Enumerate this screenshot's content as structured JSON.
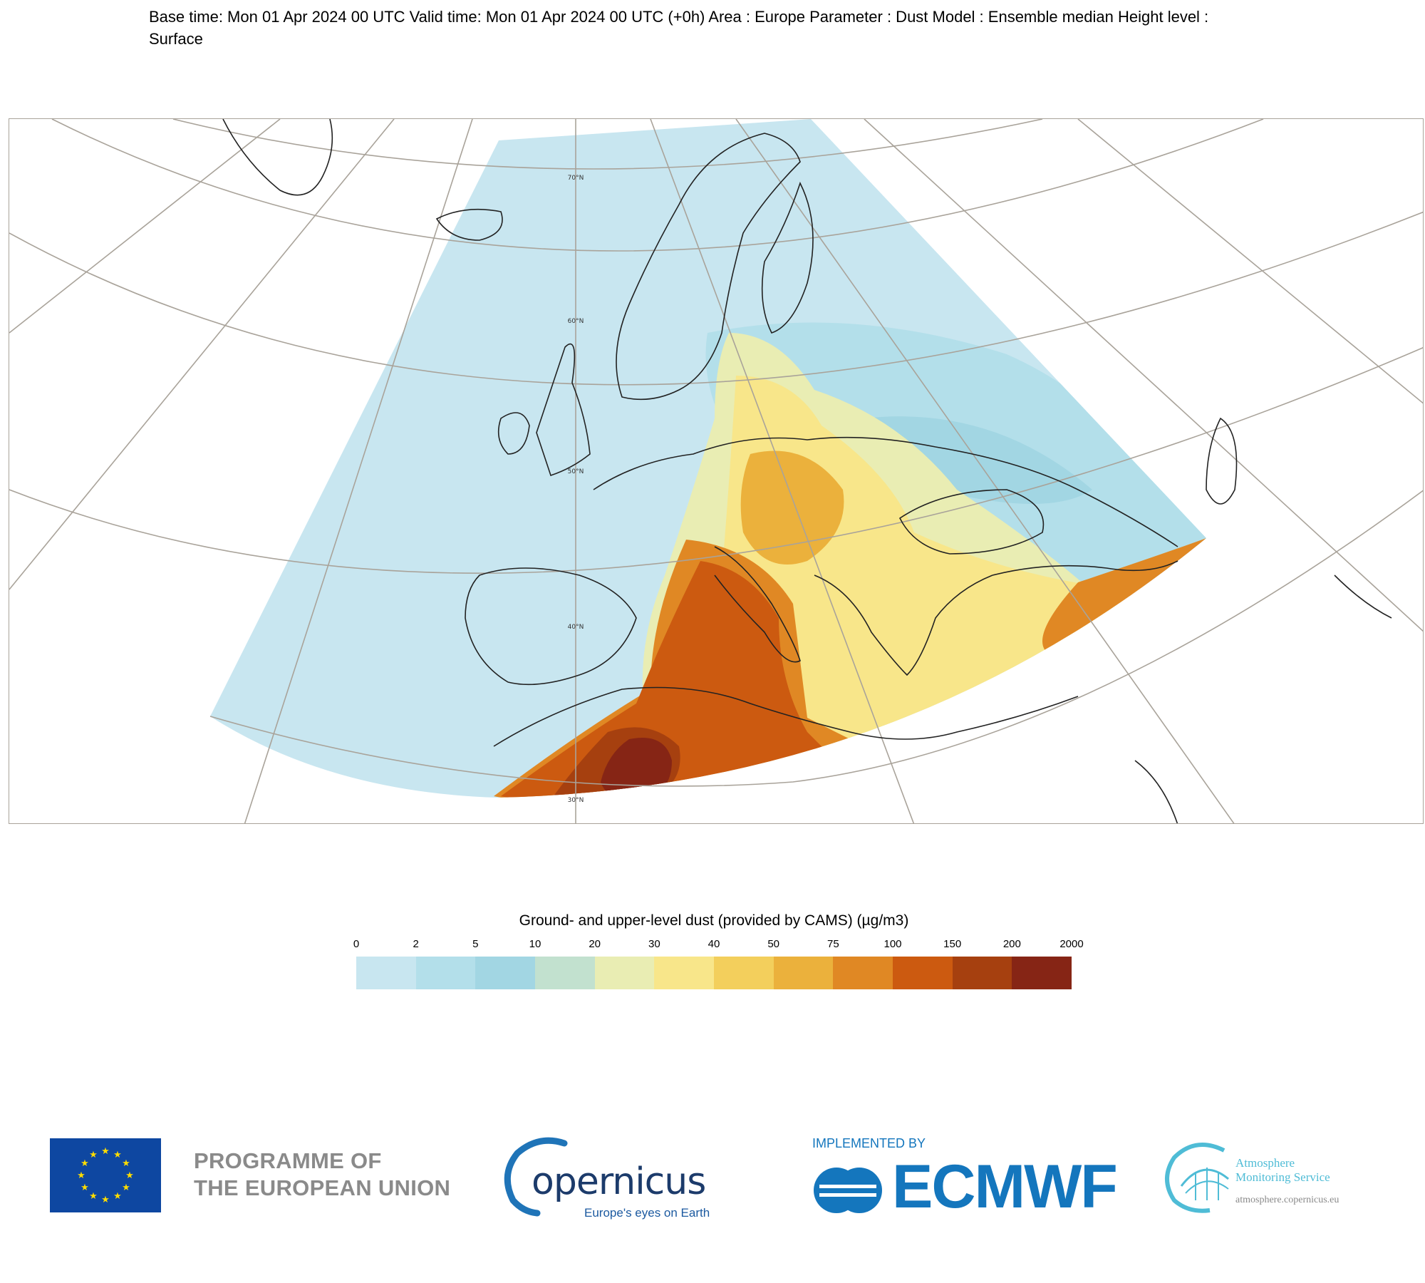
{
  "header": {
    "text": "Base time: Mon 01 Apr 2024 00 UTC Valid time: Mon 01 Apr 2024 00 UTC (+0h) Area : Europe Parameter : Dust Model : Ensemble median Height level : Surface"
  },
  "map": {
    "latitude_labels": [
      "70°N",
      "60°N",
      "50°N",
      "40°N",
      "30°N"
    ],
    "colors": {
      "graticule": "#a9a39a",
      "coast": "#222222",
      "border": "#555555"
    }
  },
  "legend": {
    "title": "Ground- and upper-level dust (provided by CAMS) (µg/m3)",
    "ticks": [
      "0",
      "2",
      "5",
      "10",
      "20",
      "30",
      "40",
      "50",
      "75",
      "100",
      "150",
      "200",
      "2000"
    ],
    "colors": [
      "#c8e6f0",
      "#b3dfea",
      "#a2d6e3",
      "#c2e1cf",
      "#e9edb3",
      "#f8e68a",
      "#f3cf5c",
      "#ebb13c",
      "#e08824",
      "#cc5a10",
      "#a6400f",
      "#862515"
    ]
  },
  "logos": {
    "eu_line1": "PROGRAMME OF",
    "eu_line2": "THE EUROPEAN UNION",
    "copernicus_word": "opernicus",
    "copernicus_tagline": "Europe's eyes on Earth",
    "ecmwf_implemented": "IMPLEMENTED BY",
    "ecmwf_word": "ECMWF",
    "cams_line1": "Atmosphere",
    "cams_line2": "Monitoring Service",
    "cams_url": "atmosphere.copernicus.eu"
  }
}
